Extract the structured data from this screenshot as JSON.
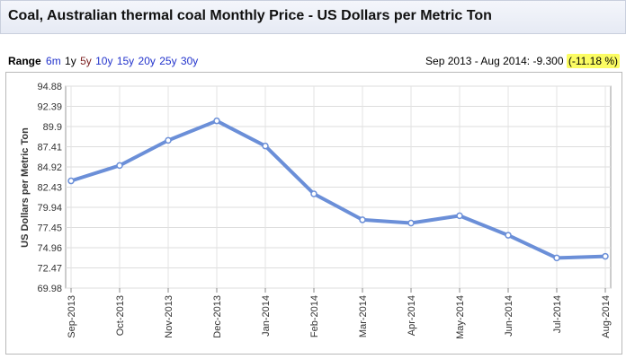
{
  "header": {
    "title": "Coal, Australian thermal coal Monthly Price - US Dollars per Metric Ton"
  },
  "range": {
    "label": "Range",
    "options": [
      "6m",
      "1y",
      "5y",
      "10y",
      "15y",
      "20y",
      "25y",
      "30y"
    ],
    "selected": "1y"
  },
  "change": {
    "text": "Sep 2013 - Aug 2014: -9.300",
    "percent": "(-11.18 %)"
  },
  "colors": {
    "line": "#6b8fd8",
    "highlight": "#fbfc62",
    "link": "#2233cc"
  },
  "chart_data": {
    "type": "line",
    "title": "",
    "xlabel": "",
    "ylabel": "US Dollars per Metric Ton",
    "categories": [
      "Sep-2013",
      "Oct-2013",
      "Nov-2013",
      "Dec-2013",
      "Jan-2014",
      "Feb-2014",
      "Mar-2014",
      "Apr-2014",
      "May-2014",
      "Jun-2014",
      "Jul-2014",
      "Aug-2014"
    ],
    "yticks": [
      "94.88",
      "92.39",
      "89.9",
      "87.41",
      "84.92",
      "82.43",
      "79.94",
      "77.45",
      "74.96",
      "72.47",
      "69.98"
    ],
    "ylim": [
      69.98,
      94.88
    ],
    "grid": true,
    "series": [
      {
        "name": "Coal, Australian thermal coal",
        "values": [
          83.2,
          85.1,
          88.2,
          90.6,
          87.5,
          81.6,
          78.4,
          78.0,
          78.9,
          76.5,
          73.7,
          73.9
        ]
      }
    ]
  }
}
